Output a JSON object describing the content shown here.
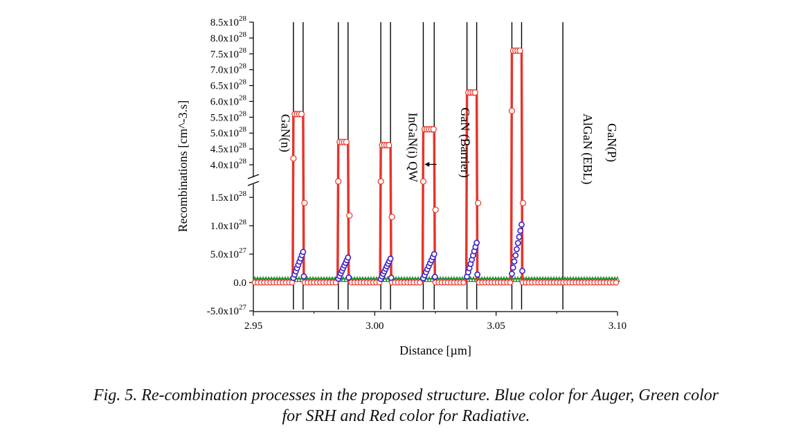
{
  "caption": {
    "line1": "Fig. 5. Re-combination processes in the proposed structure. Blue color for Auger, Green color",
    "line2": "for SRH and Red color for Radiative."
  },
  "colors": {
    "radiative": "#e8342a",
    "auger": "#3a1fc4",
    "srh": "#1f8a2a",
    "axis": "#000000"
  },
  "chart_data": {
    "type": "line",
    "xlabel": "Distance [µm]",
    "ylabel": "Recombinations [cm^-3.s]",
    "xlim": [
      2.95,
      3.1
    ],
    "x_ticks": [
      2.95,
      3.0,
      3.05,
      3.1
    ],
    "x_tick_labels": [
      "2.95",
      "3.00",
      "3.05",
      "3.10"
    ],
    "y_axis_broken": true,
    "y_break_between": [
      1.5e+28,
      4e+28
    ],
    "y_ticks_lower": [
      -5e+27,
      0,
      5e+27,
      1e+28,
      1.5e+28
    ],
    "y_tick_labels_lower": [
      "-5.0x10^27",
      "0.0",
      "5.0x10^27",
      "1.0x10^28",
      "1.5x10^28"
    ],
    "y_ticks_upper": [
      4e+28,
      4.5e+28,
      5e+28,
      5.5e+28,
      6e+28,
      6.5e+28,
      7e+28,
      7.5e+28,
      8e+28,
      8.5e+28
    ],
    "y_tick_labels_upper": [
      "4.0x10^28",
      "4.5x10^28",
      "5.0x10^28",
      "5.5x10^28",
      "6.0x10^28",
      "6.5x10^28",
      "7.0x10^28",
      "7.5x10^28",
      "8.0x10^28",
      "8.5x10^28"
    ],
    "region_boundaries": [
      2.9665,
      2.9705,
      2.985,
      2.989,
      3.0025,
      3.0065,
      3.02,
      3.0245,
      3.038,
      3.042,
      3.0565,
      3.0605,
      3.0775
    ],
    "annotations": [
      {
        "text": "GaN(n)",
        "x": 2.9615,
        "y": 5e+28
      },
      {
        "text": "InGaN(i) QW",
        "x": 3.014,
        "y": 4.55e+28
      },
      {
        "text": "GaN (Barrier)",
        "x": 3.0355,
        "y": 4.7e+28
      },
      {
        "text": "AlGaN (EBL)",
        "x": 3.086,
        "y": 4.5e+28
      },
      {
        "text": "GaN(P)",
        "x": 3.096,
        "y": 4.7e+28
      }
    ],
    "arrow": {
      "from_x": 3.0255,
      "to_x": 3.0205,
      "y": 4.1e+28
    },
    "wells": [
      {
        "x_start": 2.9665,
        "x_end": 2.9705,
        "radiative_peak": 5.6e+28,
        "auger_peak": 5.4e+27
      },
      {
        "x_start": 2.985,
        "x_end": 2.989,
        "radiative_peak": 4.72e+28,
        "auger_peak": 4.4e+27
      },
      {
        "x_start": 3.0025,
        "x_end": 3.0065,
        "radiative_peak": 4.62e+28,
        "auger_peak": 4.2e+27
      },
      {
        "x_start": 3.02,
        "x_end": 3.0245,
        "radiative_peak": 5.12e+28,
        "auger_peak": 5e+27
      },
      {
        "x_start": 3.038,
        "x_end": 3.042,
        "radiative_peak": 6.28e+28,
        "auger_peak": 7e+27
      },
      {
        "x_start": 3.0565,
        "x_end": 3.0605,
        "radiative_peak": 7.6e+28,
        "auger_peak": 1.02e+28
      }
    ],
    "series": [
      {
        "name": "Radiative",
        "color": "#e8342a",
        "marker": "open-circle"
      },
      {
        "name": "Auger",
        "color": "#3a1fc4",
        "marker": "open-circle"
      },
      {
        "name": "SRH",
        "color": "#1f8a2a",
        "marker": "triangle"
      }
    ],
    "srh_level": 6.5e+26,
    "grid": false
  }
}
